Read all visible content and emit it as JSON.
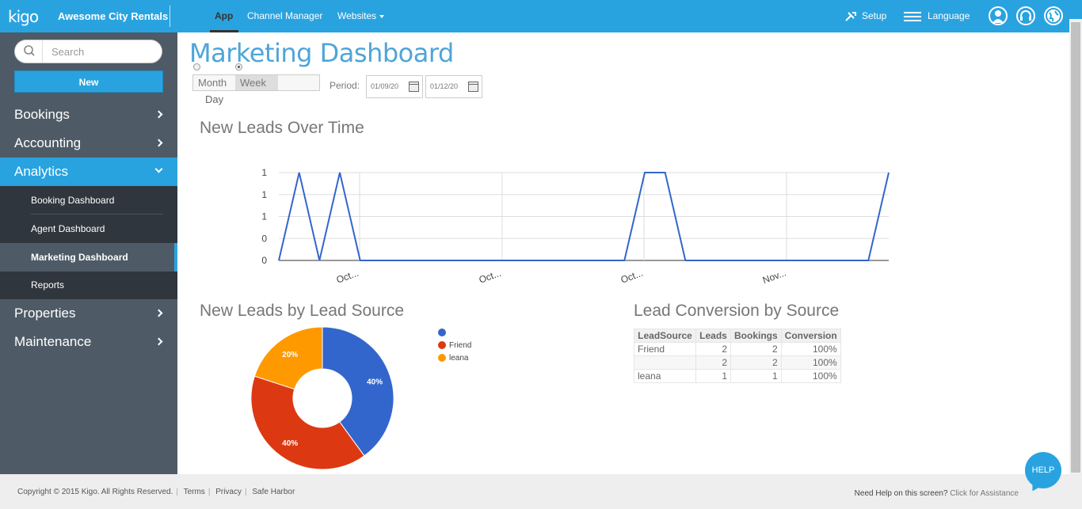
{
  "topbar": {
    "logo": "kigo",
    "company": "Awesome City Rentals",
    "nav": [
      {
        "label": "App"
      },
      {
        "label": "Channel Manager"
      },
      {
        "label": "Websites"
      }
    ],
    "setup_label": "Setup",
    "language_label": "Language",
    "accent_color": "#29a3e0"
  },
  "sidebar": {
    "search_placeholder": "Search",
    "new_label": "New",
    "menu": [
      {
        "label": "Bookings"
      },
      {
        "label": "Accounting"
      },
      {
        "label": "Analytics"
      },
      {
        "label": "Properties"
      },
      {
        "label": "Maintenance"
      }
    ],
    "submenu": [
      {
        "label": "Booking Dashboard"
      },
      {
        "label": "Agent Dashboard"
      },
      {
        "label": "Marketing Dashboard"
      },
      {
        "label": "Reports"
      }
    ]
  },
  "main": {
    "page_title": "Marketing Dashboard",
    "range_tabs": {
      "month": "Month",
      "week": "Week",
      "day": "Day"
    },
    "period_label": "Period:",
    "date_from": "01/09/20",
    "date_to": "01/12/20",
    "leads_over_time_title": "New Leads Over Time",
    "lead_source_title": "New Leads by Lead Source",
    "conversion_title": "Lead Conversion by Source"
  },
  "chart_data": [
    {
      "type": "line",
      "y_tick_labels": [
        "1",
        "1",
        "1",
        "0",
        "0"
      ],
      "x_tick_labels": [
        "Oct...",
        "Oct...",
        "Oct...",
        "Nov..."
      ],
      "ylim": [
        0,
        1
      ],
      "values": [
        0,
        1,
        0,
        1,
        0,
        0,
        0,
        0,
        0,
        0,
        0,
        0,
        0,
        0,
        0,
        0,
        0,
        0,
        1,
        1,
        0,
        0,
        0,
        0,
        0,
        0,
        0,
        0,
        0,
        0,
        1
      ],
      "grid": true,
      "color": "#3366cc"
    },
    {
      "type": "pie",
      "donut": true,
      "slices": [
        {
          "label": "",
          "value": 40,
          "display": "40%",
          "color": "#3366cc"
        },
        {
          "label": "Friend",
          "value": 40,
          "display": "40%",
          "color": "#dc3912"
        },
        {
          "label": "leana",
          "value": 20,
          "display": "20%",
          "color": "#ff9900"
        }
      ],
      "legend": "right"
    },
    {
      "type": "table",
      "columns": [
        "LeadSource",
        "Leads",
        "Bookings",
        "Conversion"
      ],
      "rows": [
        [
          "Friend",
          "2",
          "2",
          "100%"
        ],
        [
          "",
          "2",
          "2",
          "100%"
        ],
        [
          "leana",
          "1",
          "1",
          "100%"
        ]
      ]
    }
  ],
  "footer": {
    "copyright": "Copyright © 2015 Kigo. All Rights Reserved.",
    "terms": "Terms",
    "privacy": "Privacy",
    "safe_harbor": "Safe Harbor",
    "help_question": "Need Help on this screen?",
    "help_link": "Click for Assistance",
    "help_bubble": "HELP"
  }
}
